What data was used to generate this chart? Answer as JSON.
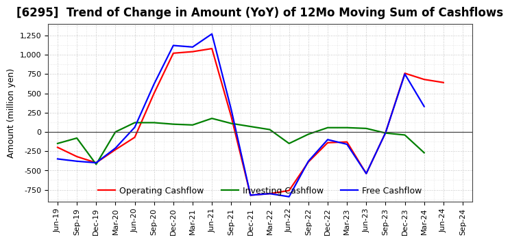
{
  "title": "[6295]  Trend of Change in Amount (YoY) of 12Mo Moving Sum of Cashflows",
  "ylabel": "Amount (million yen)",
  "x_labels": [
    "Jun-19",
    "Sep-19",
    "Dec-19",
    "Mar-20",
    "Jun-20",
    "Sep-20",
    "Dec-20",
    "Mar-21",
    "Jun-21",
    "Sep-21",
    "Dec-21",
    "Mar-22",
    "Jun-22",
    "Sep-22",
    "Dec-22",
    "Mar-23",
    "Jun-23",
    "Sep-23",
    "Dec-23",
    "Mar-24",
    "Jun-24",
    "Sep-24"
  ],
  "operating": [
    -200,
    -320,
    -400,
    -230,
    -70,
    500,
    1020,
    1040,
    1080,
    200,
    -820,
    -800,
    -760,
    -390,
    -140,
    -130,
    -540,
    -10,
    760,
    680,
    640,
    null
  ],
  "investing": [
    -150,
    -80,
    -420,
    0,
    120,
    120,
    100,
    90,
    175,
    110,
    70,
    30,
    -150,
    -30,
    55,
    55,
    45,
    -15,
    -40,
    -270,
    null,
    null
  ],
  "free": [
    -350,
    -380,
    -400,
    -210,
    60,
    620,
    1120,
    1100,
    1270,
    290,
    -820,
    -800,
    -840,
    -380,
    -100,
    -160,
    -540,
    -10,
    750,
    330,
    null,
    null
  ],
  "ylim": [
    -900,
    1400
  ],
  "yticks": [
    -750,
    -500,
    -250,
    0,
    250,
    500,
    750,
    1000,
    1250
  ],
  "operating_color": "#ff0000",
  "investing_color": "#008000",
  "free_color": "#0000ff",
  "background_color": "#ffffff",
  "grid_color": "#999999",
  "linewidth": 1.6,
  "title_fontsize": 12,
  "axis_label_fontsize": 9,
  "tick_fontsize": 8,
  "legend_fontsize": 9
}
